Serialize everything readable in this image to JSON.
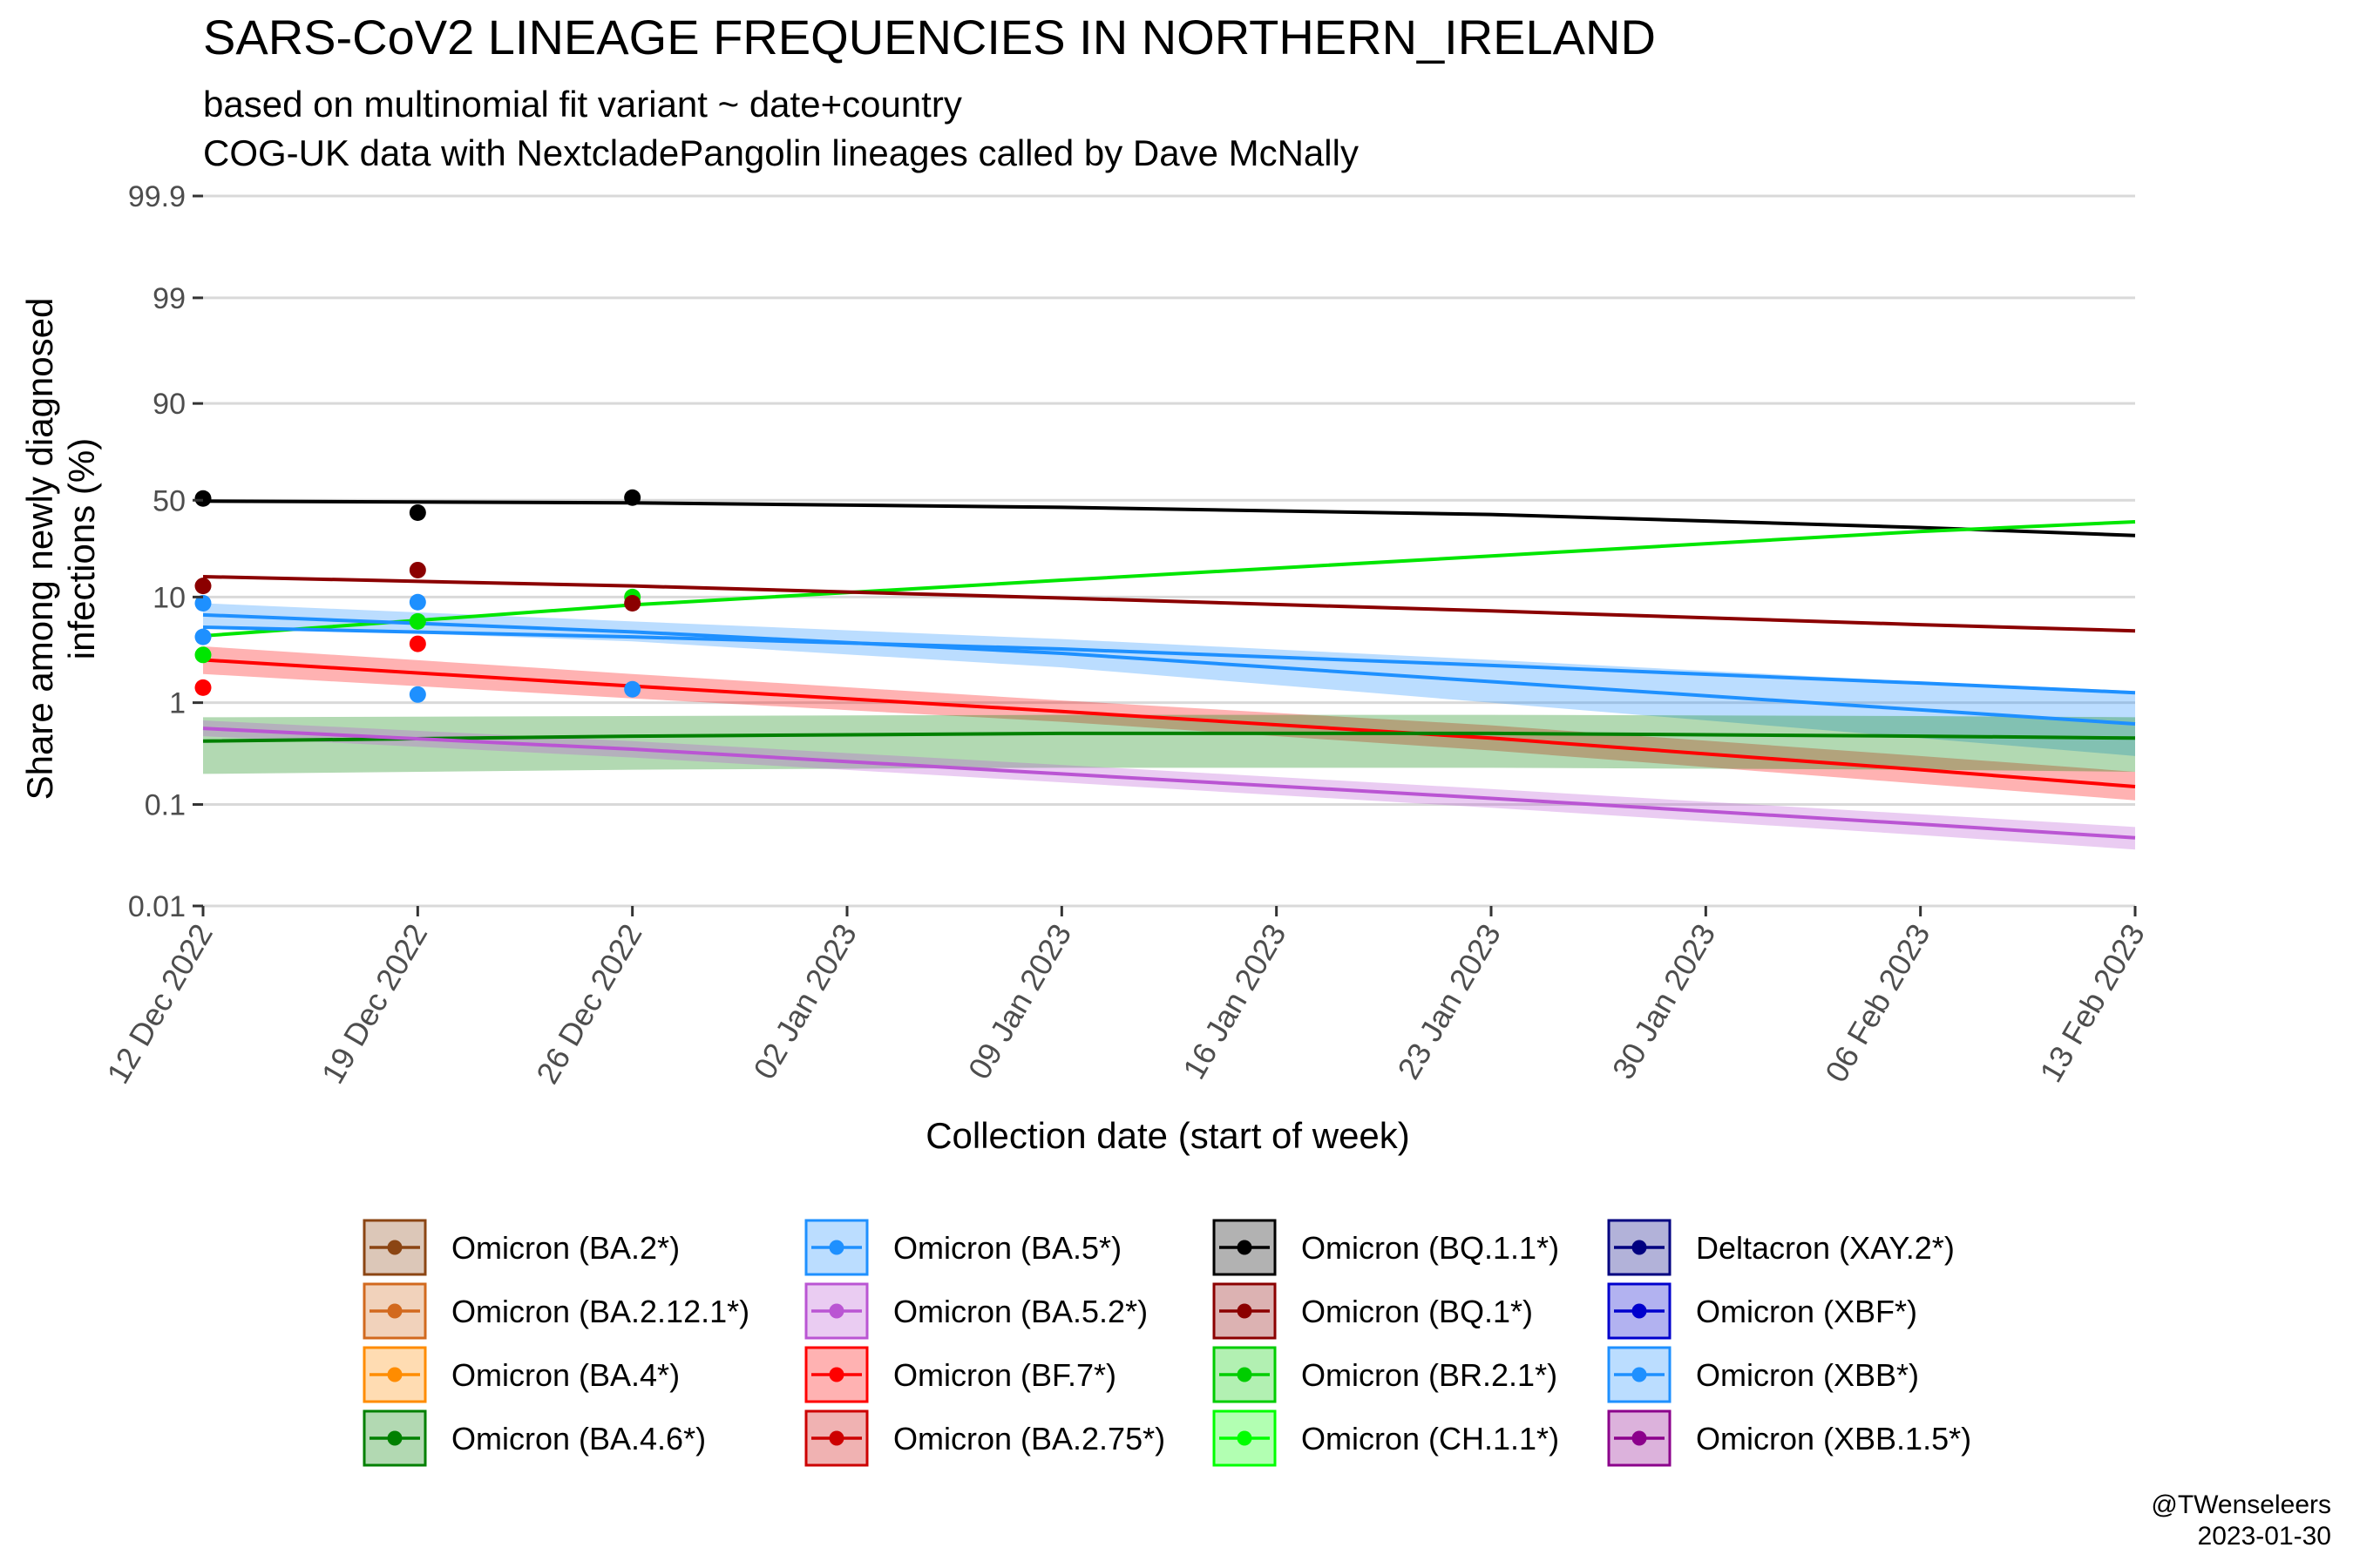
{
  "chart_data": {
    "type": "line",
    "title": "SARS-CoV2 LINEAGE FREQUENCIES IN NORTHERN_IRELAND",
    "subtitle": [
      "based on multinomial fit variant ~ date+country",
      "COG-UK data with NextcladePangolin lineages called by Dave McNally"
    ],
    "xlabel": "Collection date (start of week)",
    "ylabel": [
      "Share among newly diagnosed",
      "infections (%)"
    ],
    "y_scale": "logit",
    "y_ticks": [
      0.01,
      0.1,
      1,
      10,
      50,
      90,
      99,
      99.9
    ],
    "y_tick_labels": [
      "0.01",
      "0.1",
      "1",
      "10",
      "50",
      "90",
      "99",
      "99.9"
    ],
    "x_ticks": [
      "2022-12-12",
      "2022-12-19",
      "2022-12-26",
      "2023-01-02",
      "2023-01-09",
      "2023-01-16",
      "2023-01-23",
      "2023-01-30",
      "2023-02-06",
      "2023-02-13"
    ],
    "x_tick_labels": [
      "12 Dec 2022",
      "19 Dec 2022",
      "26 Dec 2022",
      "02 Jan 2023",
      "09 Jan 2023",
      "16 Jan 2023",
      "23 Jan 2023",
      "30 Jan 2023",
      "06 Feb 2023",
      "13 Feb 2023"
    ],
    "grid": true,
    "legend_position": "bottom",
    "series": [
      {
        "name": "Omicron (BQ.1.1*)",
        "color": "#000000",
        "fit": [
          [
            "2022-12-12",
            49.5
          ],
          [
            "2022-12-26",
            48.5
          ],
          [
            "2023-01-09",
            46
          ],
          [
            "2023-01-23",
            42
          ],
          [
            "2023-02-06",
            35
          ],
          [
            "2023-02-13",
            31
          ]
        ],
        "points": [
          [
            "2022-12-12",
            51
          ],
          [
            "2022-12-19",
            43
          ],
          [
            "2022-12-26",
            51.5
          ]
        ]
      },
      {
        "name": "Omicron (CH.1.1*)",
        "color": "#00E600",
        "fit": [
          [
            "2022-12-12",
            4.4
          ],
          [
            "2022-12-26",
            8.5
          ],
          [
            "2023-01-09",
            14
          ],
          [
            "2023-01-23",
            22
          ],
          [
            "2023-02-06",
            33
          ],
          [
            "2023-02-13",
            38
          ]
        ],
        "points": [
          [
            "2022-12-12",
            2.9
          ],
          [
            "2022-12-19",
            6
          ],
          [
            "2022-12-26",
            10
          ]
        ]
      },
      {
        "name": "Omicron (BQ.1*)",
        "color": "#8B0000",
        "fit": [
          [
            "2022-12-12",
            15
          ],
          [
            "2022-12-26",
            12.5
          ],
          [
            "2023-01-09",
            9.8
          ],
          [
            "2023-01-23",
            7.5
          ],
          [
            "2023-02-06",
            5.6
          ],
          [
            "2023-02-13",
            4.9
          ]
        ],
        "points": [
          [
            "2022-12-12",
            12.5
          ],
          [
            "2022-12-19",
            17
          ],
          [
            "2022-12-26",
            8.8
          ]
        ]
      },
      {
        "name": "Omicron (XBB*)",
        "color": "#1E90FF",
        "fit": [
          [
            "2022-12-12",
            6.9
          ],
          [
            "2022-12-26",
            4.8
          ],
          [
            "2023-01-09",
            3.0
          ],
          [
            "2023-01-23",
            1.6
          ],
          [
            "2023-02-06",
            0.85
          ],
          [
            "2023-02-13",
            0.62
          ]
        ],
        "band": [
          [
            "2022-12-12",
            5.5,
            8.8
          ],
          [
            "2022-12-26",
            3.9,
            6.0
          ],
          [
            "2023-01-09",
            2.2,
            4.1
          ],
          [
            "2023-01-23",
            1.0,
            2.6
          ],
          [
            "2023-02-06",
            0.45,
            1.6
          ],
          [
            "2023-02-13",
            0.3,
            1.3
          ]
        ],
        "points": [
          [
            "2022-12-12",
            8.8
          ],
          [
            "2022-12-19",
            9.0
          ],
          [
            "2022-12-26",
            1.35
          ]
        ]
      },
      {
        "name": "Omicron (BA.5*)",
        "color": "#1E90FF",
        "fit": [
          [
            "2022-12-12",
            5.3
          ],
          [
            "2022-12-26",
            4.3
          ],
          [
            "2023-01-09",
            3.3
          ],
          [
            "2023-01-23",
            2.3
          ],
          [
            "2023-02-06",
            1.55
          ],
          [
            "2023-02-13",
            1.25
          ]
        ],
        "points": [
          [
            "2022-12-12",
            4.3
          ],
          [
            "2022-12-19",
            1.2
          ]
        ]
      },
      {
        "name": "Omicron (BF.7*)",
        "color": "#FF0000",
        "fit": [
          [
            "2022-12-12",
            2.6
          ],
          [
            "2022-12-26",
            1.45
          ],
          [
            "2023-01-09",
            0.82
          ],
          [
            "2023-01-23",
            0.45
          ],
          [
            "2023-02-06",
            0.22
          ],
          [
            "2023-02-13",
            0.15
          ]
        ],
        "band": [
          [
            "2022-12-12",
            1.9,
            3.5
          ],
          [
            "2022-12-26",
            1.1,
            1.9
          ],
          [
            "2023-01-09",
            0.65,
            1.05
          ],
          [
            "2023-01-23",
            0.34,
            0.6
          ],
          [
            "2023-02-06",
            0.16,
            0.3
          ],
          [
            "2023-02-13",
            0.11,
            0.21
          ]
        ],
        "points": [
          [
            "2022-12-12",
            1.4
          ],
          [
            "2022-12-19",
            3.7
          ]
        ]
      },
      {
        "name": "Omicron (BA.4.6*)",
        "color": "#008000",
        "fit": [
          [
            "2022-12-12",
            0.42
          ],
          [
            "2022-12-26",
            0.47
          ],
          [
            "2023-01-09",
            0.5
          ],
          [
            "2023-01-23",
            0.5
          ],
          [
            "2023-02-06",
            0.47
          ],
          [
            "2023-02-13",
            0.45
          ]
        ],
        "band": [
          [
            "2022-12-12",
            0.2,
            0.72
          ],
          [
            "2022-12-26",
            0.22,
            0.74
          ],
          [
            "2023-01-09",
            0.23,
            0.76
          ],
          [
            "2023-01-23",
            0.23,
            0.76
          ],
          [
            "2023-02-06",
            0.22,
            0.74
          ],
          [
            "2023-02-13",
            0.21,
            0.72
          ]
        ]
      },
      {
        "name": "Omicron (BA.5.2*)",
        "color": "#BA55D3",
        "fit": [
          [
            "2022-12-12",
            0.56
          ],
          [
            "2022-12-26",
            0.35
          ],
          [
            "2023-01-09",
            0.2
          ],
          [
            "2023-01-23",
            0.115
          ],
          [
            "2023-02-06",
            0.064
          ],
          [
            "2023-02-13",
            0.047
          ]
        ],
        "band": [
          [
            "2022-12-12",
            0.47,
            0.67
          ],
          [
            "2022-12-26",
            0.29,
            0.42
          ],
          [
            "2023-01-09",
            0.165,
            0.245
          ],
          [
            "2023-01-23",
            0.093,
            0.142
          ],
          [
            "2023-02-06",
            0.05,
            0.08
          ],
          [
            "2023-02-13",
            0.036,
            0.06
          ]
        ]
      }
    ],
    "legend": [
      {
        "label": "Omicron (BA.2*)",
        "color": "#8B4513"
      },
      {
        "label": "Omicron (BA.2.12.1*)",
        "color": "#D2691E"
      },
      {
        "label": "Omicron (BA.4*)",
        "color": "#FF8C00"
      },
      {
        "label": "Omicron (BA.4.6*)",
        "color": "#008000"
      },
      {
        "label": "Omicron (BA.5*)",
        "color": "#1E90FF"
      },
      {
        "label": "Omicron (BA.5.2*)",
        "color": "#BA55D3"
      },
      {
        "label": "Omicron (BF.7*)",
        "color": "#FF0000"
      },
      {
        "label": "Omicron (BA.2.75*)",
        "color": "#CD0000"
      },
      {
        "label": "Omicron (BQ.1.1*)",
        "color": "#000000"
      },
      {
        "label": "Omicron (BQ.1*)",
        "color": "#8B0000"
      },
      {
        "label": "Omicron (BR.2.1*)",
        "color": "#00CD00"
      },
      {
        "label": "Omicron (CH.1.1*)",
        "color": "#00FF00"
      },
      {
        "label": "Deltacron (XAY.2*)",
        "color": "#000080"
      },
      {
        "label": "Omicron (XBF*)",
        "color": "#0000CD"
      },
      {
        "label": "Omicron (XBB*)",
        "color": "#1E90FF"
      },
      {
        "label": "Omicron (XBB.1.5*)",
        "color": "#8B008B"
      }
    ]
  },
  "caption": {
    "handle": "@TWenseleers",
    "date": "2023-01-30"
  }
}
